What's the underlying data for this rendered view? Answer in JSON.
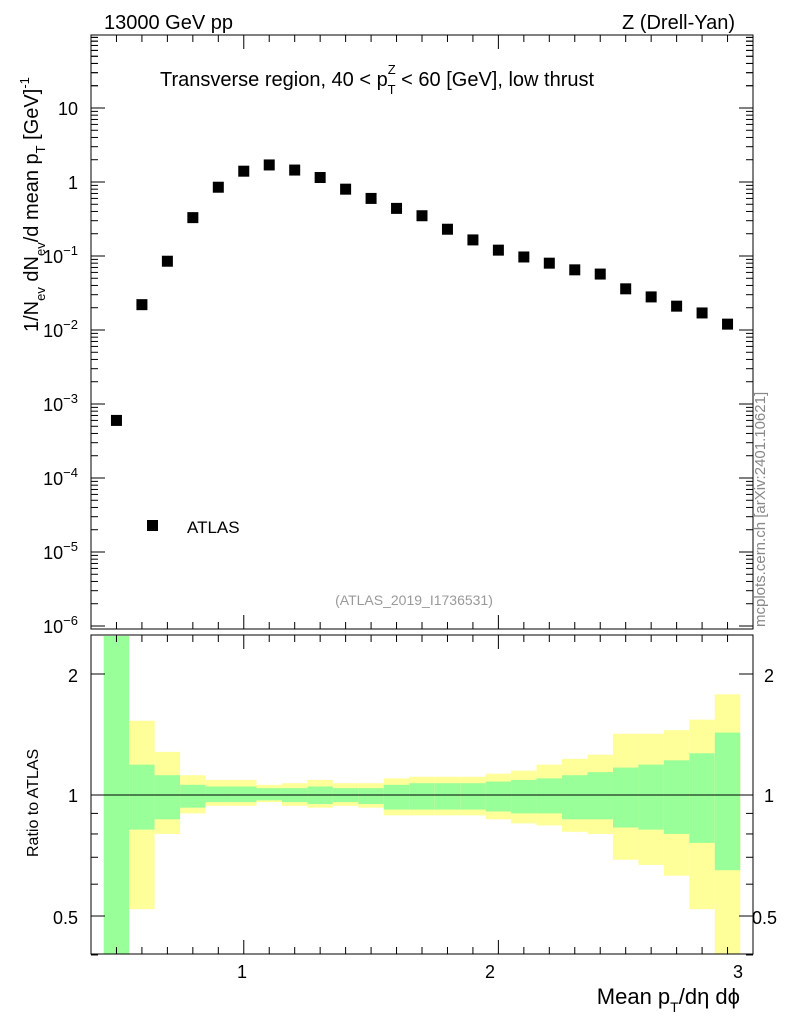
{
  "header": {
    "left": "13000 GeV pp",
    "right": "Z (Drell-Yan)"
  },
  "plot_title": "Transverse region, 40 < pTZ < 60 [GeV], low thrust",
  "title_parts": {
    "a": "Transverse region, 40 < p",
    "sup": "Z",
    "sub": "T",
    "b": " < 60 [GeV], low thrust"
  },
  "ylabel_main": {
    "p1": "1/N",
    "s1": "ev",
    "p2": " dN",
    "s2": "ev",
    "p3": "/d mean p",
    "s3": "T",
    "p4": " [GeV]",
    "sup4": "-1"
  },
  "ylabel_ratio": "Ratio to ATLAS",
  "xlabel": {
    "p1": "Mean p",
    "s1": "T",
    "p2": "/dη dϕ"
  },
  "legend_label": "ATLAS",
  "analysis_id": "(ATLAS_2019_I1736531)",
  "watermark": "mcplots.cern.ch [arXiv:2401.10621]",
  "colors": {
    "green_band": "#99ff99",
    "yellow_band": "#ffff99",
    "marker": "#000000",
    "id_text": "#999999",
    "watermark_text": "#888888"
  },
  "chart_data": [
    {
      "panel": "main",
      "type": "scatter",
      "series": [
        {
          "name": "ATLAS",
          "x": [
            0.5,
            0.6,
            0.7,
            0.8,
            0.9,
            1.0,
            1.1,
            1.2,
            1.3,
            1.4,
            1.5,
            1.6,
            1.7,
            1.8,
            1.9,
            2.0,
            2.1,
            2.2,
            2.3,
            2.4,
            2.5,
            2.6,
            2.7,
            2.8,
            2.9
          ],
          "y": [
            0.0006,
            0.022,
            0.085,
            0.33,
            0.85,
            1.4,
            1.7,
            1.45,
            1.15,
            0.8,
            0.6,
            0.44,
            0.35,
            0.23,
            0.165,
            0.12,
            0.097,
            0.08,
            0.065,
            0.057,
            0.036,
            0.028,
            0.021,
            0.017,
            0.012
          ]
        }
      ],
      "yscale": "log",
      "ylim": [
        5e-07,
        100
      ],
      "xlim": [
        0.4,
        3.0
      ],
      "xlabel": "Mean pT/dη dϕ",
      "ylabel": "1/Nev dNev/d mean pT [GeV]-1",
      "ytick_labels": [
        "10",
        "1",
        "10^-1",
        "10^-2",
        "10^-3",
        "10^-4",
        "10^-5",
        "10^-6"
      ]
    },
    {
      "panel": "ratio",
      "type": "area",
      "ylabel": "Ratio to ATLAS",
      "ylim": [
        0.35,
        2.3
      ],
      "yticks": [
        "0.5",
        "1",
        "2"
      ],
      "xticks": [
        "1",
        "2",
        "3"
      ],
      "reference_line": 1,
      "bin_edges": [
        0.45,
        0.55,
        0.65,
        0.75,
        0.85,
        0.95,
        1.05,
        1.15,
        1.25,
        1.35,
        1.45,
        1.55,
        1.65,
        1.75,
        1.85,
        1.95,
        2.05,
        2.15,
        2.25,
        2.35,
        2.45,
        2.55,
        2.65,
        2.75,
        2.85,
        2.95
      ],
      "band_green": {
        "lo": [
          0.1,
          0.82,
          0.87,
          0.93,
          0.96,
          0.96,
          0.97,
          0.96,
          0.95,
          0.96,
          0.95,
          0.92,
          0.92,
          0.92,
          0.92,
          0.91,
          0.9,
          0.9,
          0.87,
          0.87,
          0.83,
          0.82,
          0.8,
          0.76,
          0.65
        ],
        "hi": [
          5.0,
          1.19,
          1.12,
          1.06,
          1.05,
          1.05,
          1.04,
          1.04,
          1.05,
          1.04,
          1.04,
          1.06,
          1.07,
          1.07,
          1.07,
          1.08,
          1.09,
          1.1,
          1.12,
          1.14,
          1.17,
          1.19,
          1.22,
          1.27,
          1.43
        ]
      },
      "band_yellow": {
        "lo": [
          0.1,
          0.52,
          0.8,
          0.9,
          0.94,
          0.94,
          0.96,
          0.94,
          0.93,
          0.94,
          0.93,
          0.89,
          0.89,
          0.89,
          0.89,
          0.87,
          0.85,
          0.84,
          0.81,
          0.8,
          0.69,
          0.67,
          0.63,
          0.52,
          0.38
        ],
        "hi": [
          5.0,
          1.53,
          1.28,
          1.12,
          1.09,
          1.09,
          1.06,
          1.07,
          1.09,
          1.07,
          1.07,
          1.1,
          1.11,
          1.11,
          1.11,
          1.13,
          1.15,
          1.19,
          1.23,
          1.26,
          1.42,
          1.42,
          1.45,
          1.54,
          1.78
        ]
      }
    }
  ]
}
